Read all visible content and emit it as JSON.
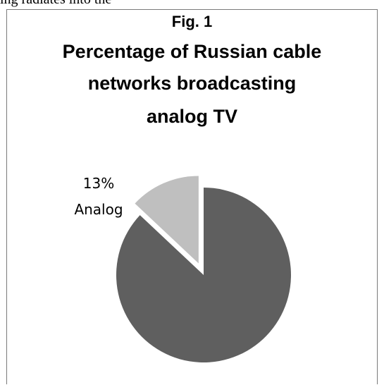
{
  "document": {
    "fragment_text": "ing radiates into the"
  },
  "figure": {
    "label": "Fig. 1"
  },
  "chart_data": {
    "type": "pie",
    "title": "Percentage of Russian cable networks broadcasting analog TV",
    "title_lines": [
      "Percentage of Russian cable",
      "networks broadcasting",
      "analog TV"
    ],
    "slices": [
      {
        "label": "Analog",
        "value": 13,
        "display": "13%",
        "color": "#bfbfbf",
        "exploded": true
      },
      {
        "label": "",
        "value": 87,
        "display": "",
        "color": "#5f5f5f",
        "exploded": false
      }
    ]
  }
}
